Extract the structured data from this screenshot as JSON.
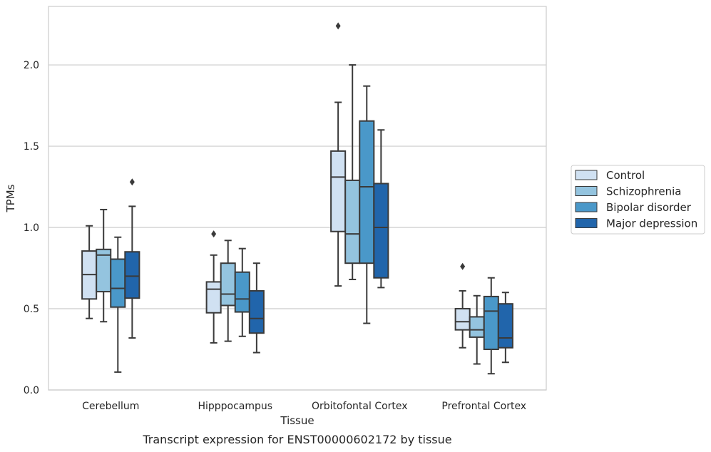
{
  "chart_data": {
    "type": "box",
    "title": "",
    "caption": "Transcript expression for ENST00000602172 by tissue",
    "xlabel": "Tissue",
    "ylabel": "TPMs",
    "ylim": [
      0,
      2.36
    ],
    "yticks": [
      0.0,
      0.5,
      1.0,
      1.5,
      2.0
    ],
    "ytick_labels": [
      "0.0",
      "0.5",
      "1.0",
      "1.5",
      "2.0"
    ],
    "grid": "horizontal",
    "legend_position": "right",
    "categories": [
      "Cerebellum",
      "Hipppocampus",
      "Orbitofontal Cortex",
      "Prefrontal Cortex"
    ],
    "series": [
      {
        "name": "Control",
        "color": "#d0e1f2",
        "boxes": [
          {
            "whislo": 0.44,
            "q1": 0.56,
            "med": 0.71,
            "q3": 0.855,
            "whishi": 1.01,
            "fliers": []
          },
          {
            "whislo": 0.29,
            "q1": 0.475,
            "med": 0.62,
            "q3": 0.665,
            "whishi": 0.83,
            "fliers": [
              0.96
            ]
          },
          {
            "whislo": 0.64,
            "q1": 0.975,
            "med": 1.31,
            "q3": 1.47,
            "whishi": 1.77,
            "fliers": [
              2.24
            ]
          },
          {
            "whislo": 0.26,
            "q1": 0.37,
            "med": 0.42,
            "q3": 0.5,
            "whishi": 0.61,
            "fliers": [
              0.76
            ]
          }
        ]
      },
      {
        "name": "Schizophrenia",
        "color": "#94c4df",
        "boxes": [
          {
            "whislo": 0.42,
            "q1": 0.605,
            "med": 0.83,
            "q3": 0.865,
            "whishi": 1.11,
            "fliers": []
          },
          {
            "whislo": 0.3,
            "q1": 0.52,
            "med": 0.59,
            "q3": 0.78,
            "whishi": 0.92,
            "fliers": []
          },
          {
            "whislo": 0.68,
            "q1": 0.78,
            "med": 0.96,
            "q3": 1.29,
            "whishi": 2.0,
            "fliers": []
          },
          {
            "whislo": 0.16,
            "q1": 0.325,
            "med": 0.37,
            "q3": 0.45,
            "whishi": 0.58,
            "fliers": []
          }
        ]
      },
      {
        "name": "Bipolar disorder",
        "color": "#4a98c9",
        "boxes": [
          {
            "whislo": 0.11,
            "q1": 0.51,
            "med": 0.625,
            "q3": 0.805,
            "whishi": 0.94,
            "fliers": []
          },
          {
            "whislo": 0.33,
            "q1": 0.48,
            "med": 0.56,
            "q3": 0.725,
            "whishi": 0.87,
            "fliers": []
          },
          {
            "whislo": 0.41,
            "q1": 0.78,
            "med": 1.25,
            "q3": 1.655,
            "whishi": 1.87,
            "fliers": []
          },
          {
            "whislo": 0.1,
            "q1": 0.25,
            "med": 0.485,
            "q3": 0.575,
            "whishi": 0.69,
            "fliers": []
          }
        ]
      },
      {
        "name": "Major depression",
        "color": "#2165ab",
        "boxes": [
          {
            "whislo": 0.32,
            "q1": 0.565,
            "med": 0.7,
            "q3": 0.85,
            "whishi": 1.13,
            "fliers": [
              1.28
            ]
          },
          {
            "whislo": 0.23,
            "q1": 0.35,
            "med": 0.44,
            "q3": 0.61,
            "whishi": 0.78,
            "fliers": []
          },
          {
            "whislo": 0.63,
            "q1": 0.69,
            "med": 1.0,
            "q3": 1.27,
            "whishi": 1.6,
            "fliers": []
          },
          {
            "whislo": 0.17,
            "q1": 0.26,
            "med": 0.32,
            "q3": 0.53,
            "whishi": 0.6,
            "fliers": []
          }
        ]
      }
    ]
  }
}
